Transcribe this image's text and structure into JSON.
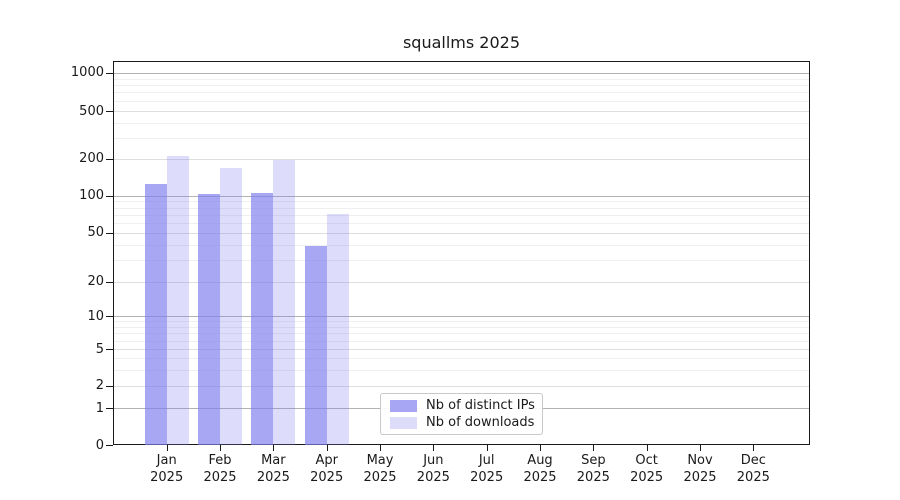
{
  "title": "squallms 2025",
  "chart_data": {
    "type": "bar",
    "title": "squallms 2025",
    "categories": [
      "Jan",
      "Feb",
      "Mar",
      "Apr",
      "May",
      "Jun",
      "Jul",
      "Aug",
      "Sep",
      "Oct",
      "Nov",
      "Dec"
    ],
    "category_year": "2025",
    "series": [
      {
        "name": "Nb of distinct IPs",
        "slug": "distinct-ips",
        "values": [
          125,
          103,
          106,
          39,
          0,
          0,
          0,
          0,
          0,
          0,
          0,
          0
        ],
        "bar_color": "rgba(125,125,238,0.68)",
        "legend_color": "#a6a6f4"
      },
      {
        "name": "Nb of downloads",
        "slug": "downloads",
        "values": [
          212,
          168,
          196,
          71,
          0,
          0,
          0,
          0,
          0,
          0,
          0,
          0
        ],
        "bar_color": "rgba(125,125,238,0.26)",
        "legend_color": "#ddddfa"
      }
    ],
    "yscale": "log-like (0,1,2,5,10,20,50,100,200,500,1000)",
    "y_ticks": [
      0,
      1,
      2,
      5,
      10,
      20,
      50,
      100,
      200,
      500,
      1000
    ],
    "ylim": [
      0,
      1180
    ],
    "grid": true,
    "legend_position": "lower center"
  },
  "colors": {
    "grid_major_decade": "#b2b2b2",
    "grid_major_light": "#dedede",
    "grid_minor": "#efefef",
    "axis": "#1a1a1a",
    "background": "#ffffff"
  }
}
